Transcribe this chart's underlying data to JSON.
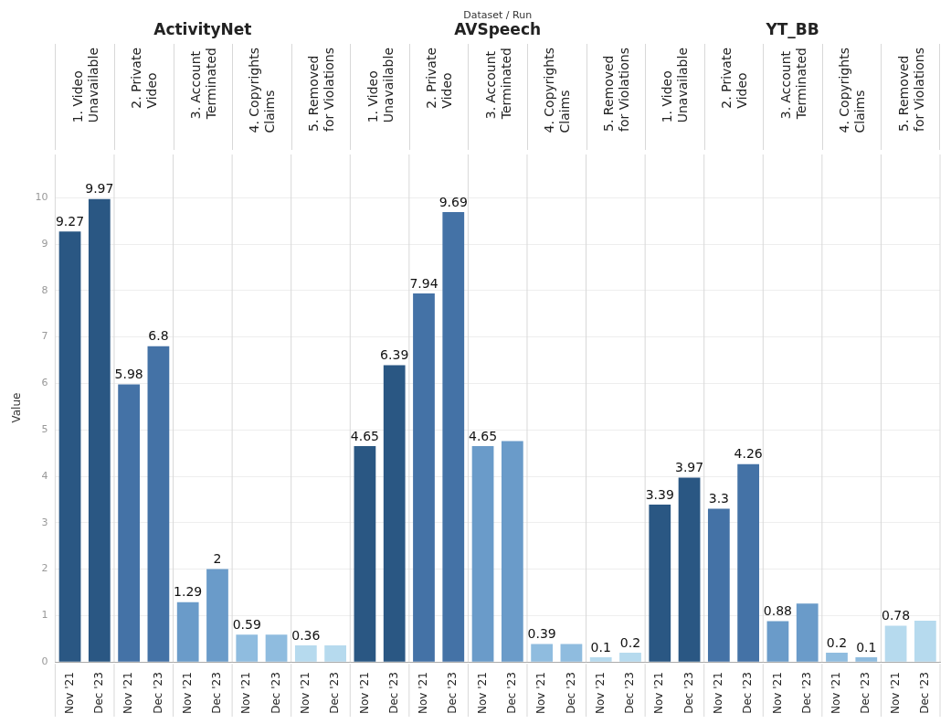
{
  "chart_data": {
    "type": "bar",
    "ylabel": "Value",
    "categories": [
      "Nov '21",
      "Dec '23",
      "Nov '21",
      "Dec '23",
      "Nov '21",
      "Dec '23",
      "Nov '21",
      "Dec '23",
      "Nov '21",
      "Dec '23",
      "Nov '21",
      "Dec '23",
      "Nov '21",
      "Dec '23",
      "Nov '21",
      "Dec '23",
      "Nov '21",
      "Dec '23",
      "Nov '21",
      "Dec '23",
      "Nov '21",
      "Dec '23",
      "Nov '21",
      "Dec '23",
      "Nov '21",
      "Dec '23",
      "Nov '21",
      "Dec '23",
      "Nov '21",
      "Dec '23"
    ],
    "values": [
      9.27,
      9.97,
      5.98,
      6.8,
      1.29,
      2,
      0.59,
      0.59,
      0.36,
      0.36,
      4.65,
      6.39,
      7.94,
      9.69,
      4.65,
      4.76,
      0.39,
      0.39,
      0.1,
      0.2,
      3.39,
      3.97,
      3.3,
      4.26,
      0.88,
      1.26,
      0.2,
      0.1,
      0.78,
      0.89
    ],
    "value_labels": [
      "9.27",
      "9.97",
      "5.98",
      "6.8",
      "1.29",
      "2",
      "0.59",
      null,
      "0.36",
      null,
      "4.65",
      "6.39",
      "7.94",
      "9.69",
      "4.65",
      null,
      "0.39",
      null,
      "0.1",
      "0.2",
      "3.39",
      "3.97",
      "3.3",
      "4.26",
      "0.88",
      null,
      "0.2",
      "0.1",
      "0.78",
      null
    ],
    "colors": [
      "#2a5783",
      "#2a5783",
      "#4472a6",
      "#4472a6",
      "#6a9bc9",
      "#6a9bc9",
      "#8fbcdf",
      "#8fbcdf",
      "#b6daee",
      "#b6daee",
      "#2a5783",
      "#2a5783",
      "#4472a6",
      "#4472a6",
      "#6a9bc9",
      "#6a9bc9",
      "#8fbcdf",
      "#8fbcdf",
      "#b6daee",
      "#b6daee",
      "#2a5783",
      "#2a5783",
      "#4472a6",
      "#4472a6",
      "#6a9bc9",
      "#6a9bc9",
      "#8fbcdf",
      "#8fbcdf",
      "#b6daee",
      "#b6daee"
    ],
    "annotations": [
      "Dataset / Run",
      "ActivityNet",
      "AVSpeech",
      "YT_BB",
      "1. Video Unavailable",
      "2. Private Video",
      "3. Account Terminated",
      "4. Copyrights Claims",
      "5. Removed for Violations",
      "1. Video Unavailable",
      "2. Private Video",
      "3. Account Terminated",
      "4. Copyrights Claims",
      "5. Removed for Violations",
      "1. Video Unavailable",
      "2. Private Video",
      "3. Account Terminated",
      "4. Copyrights Claims",
      "5. Removed for Violations"
    ],
    "ylim": [
      0,
      10.95
    ],
    "yticks": [
      0,
      1,
      2,
      3,
      4,
      5,
      6,
      7,
      8,
      9,
      10
    ],
    "grid": "y",
    "legend": false
  }
}
